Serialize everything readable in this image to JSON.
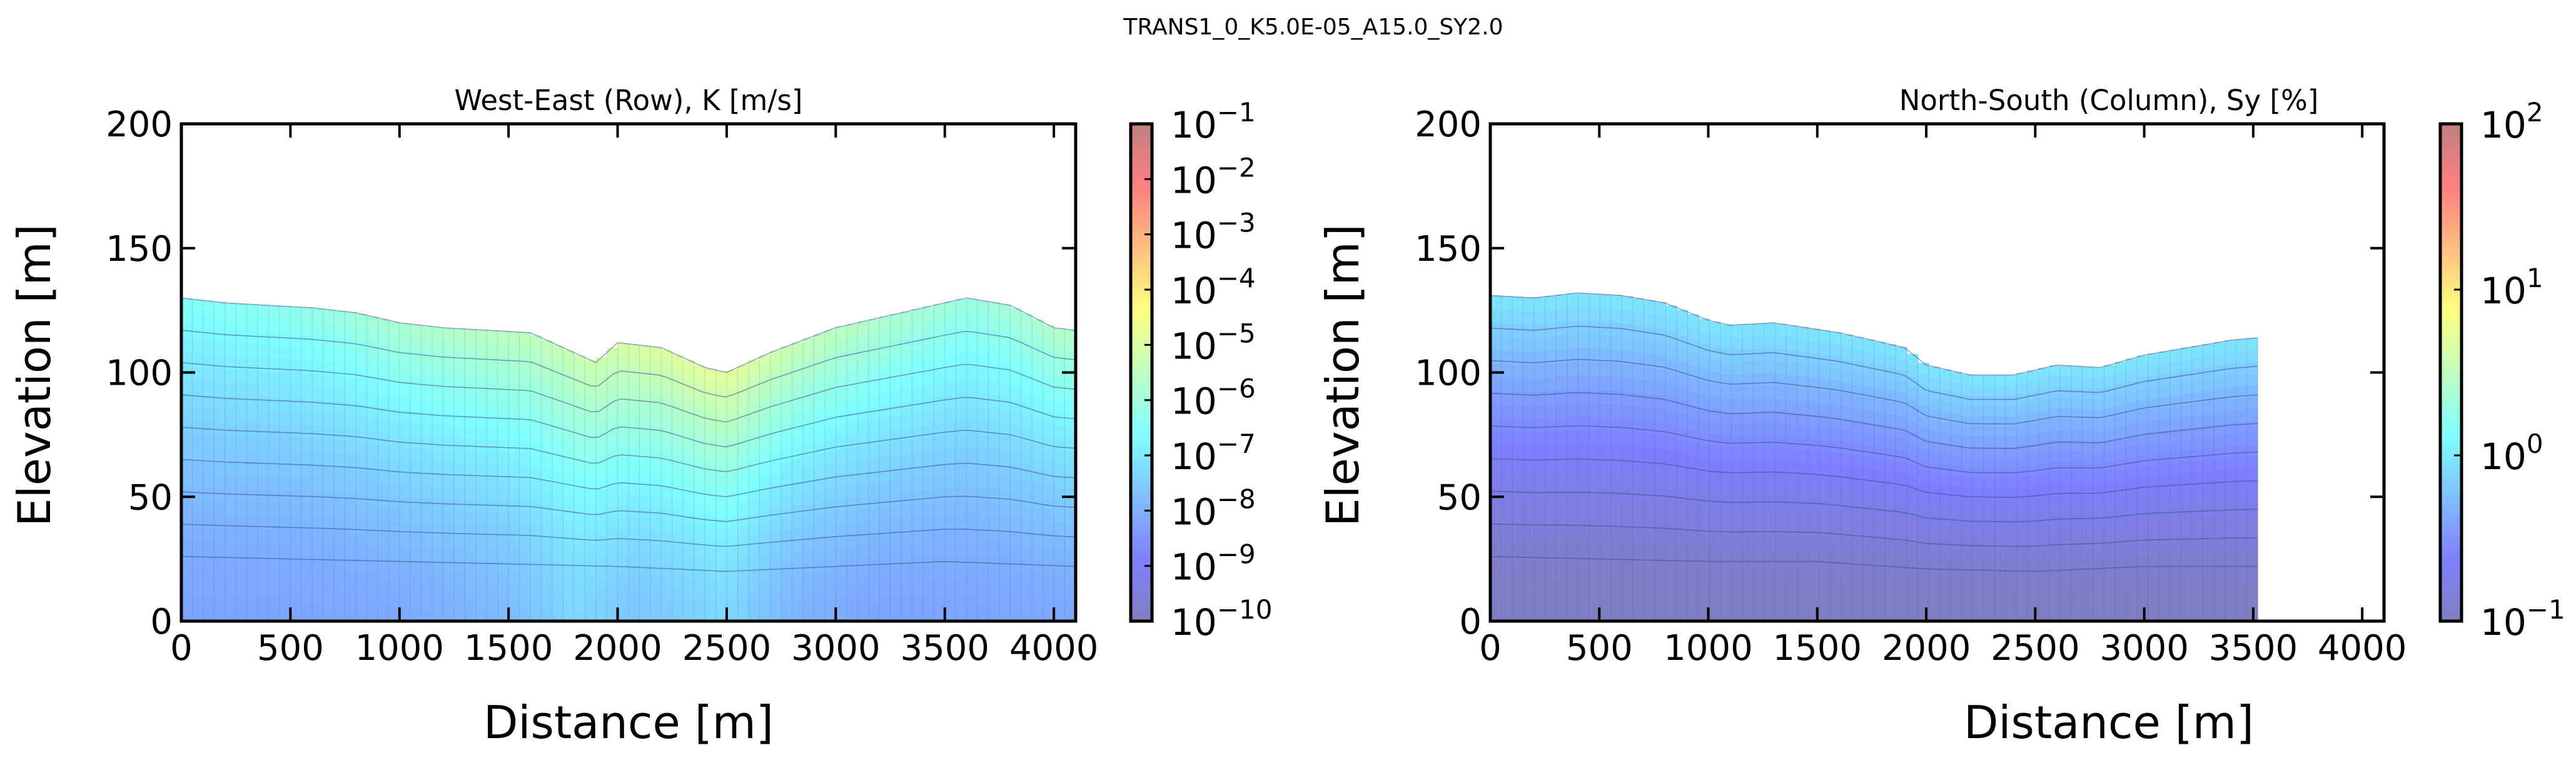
{
  "figure": {
    "suptitle": "TRANS1_0_K5.0E-05_A15.0_SY2.0"
  },
  "colors": {
    "jet": [
      "#00007f",
      "#0000ff",
      "#007fff",
      "#00ffff",
      "#7fff7f",
      "#ffff00",
      "#ff7f00",
      "#ff0000",
      "#7f0000"
    ],
    "layer_line": "#3a4a8a",
    "axis": "#000000"
  },
  "chart_data": [
    {
      "type": "heatmap",
      "title": "West-East (Row), K [m/s]",
      "xlabel": "Distance [m]",
      "ylabel": "Elevation [m]",
      "xlim": [
        0,
        4100
      ],
      "ylim": [
        0,
        200
      ],
      "xticks": [
        0,
        500,
        1000,
        1500,
        2000,
        2500,
        3000,
        3500,
        4000
      ],
      "yticks": [
        0,
        50,
        100,
        150,
        200
      ],
      "grid": false,
      "colorbar": {
        "scale": "log",
        "range": [
          1e-10,
          0.1
        ],
        "tick_bases": [
          "10",
          "10",
          "10",
          "10",
          "10",
          "10",
          "10",
          "10",
          "10",
          "10"
        ],
        "tick_exponents": [
          "-10",
          "-9",
          "-8",
          "-7",
          "-6",
          "-5",
          "-4",
          "-3",
          "-2",
          "-1"
        ]
      },
      "surface": {
        "x": [
          0,
          200,
          400,
          600,
          800,
          1000,
          1200,
          1400,
          1600,
          1800,
          1900,
          2000,
          2200,
          2400,
          2500,
          2700,
          3000,
          3300,
          3600,
          3800,
          4000,
          4100
        ],
        "top": [
          130,
          128,
          127,
          126,
          124,
          120,
          118,
          117,
          116,
          108,
          104,
          112,
          110,
          102,
          100,
          108,
          118,
          124,
          130,
          127,
          118,
          117
        ]
      },
      "bottom_layer_line": {
        "x": [
          0,
          500,
          1000,
          1500,
          2000,
          2500,
          3000,
          3500,
          4100
        ],
        "y": [
          26,
          25,
          24,
          23,
          22,
          20,
          22,
          24,
          22
        ]
      },
      "layers": 9,
      "values_profile": {
        "x": [
          0,
          500,
          1000,
          1500,
          1800,
          2100,
          2500,
          2800,
          3200,
          3600,
          4100
        ],
        "top_log10K": [
          -6.5,
          -6.3,
          -5.8,
          -5.5,
          -5.3,
          -5.0,
          -4.8,
          -5.3,
          -5.7,
          -6.1,
          -5.6
        ],
        "bottom_log10K": [
          -8.2,
          -8.2,
          -8.1,
          -7.8,
          -7.3,
          -7.6,
          -7.3,
          -7.9,
          -8.2,
          -8.2,
          -8.1
        ]
      }
    },
    {
      "type": "heatmap",
      "title": "North-South (Column), Sy [%]",
      "xlabel": "Distance [m]",
      "ylabel": "Elevation [m]",
      "xlim": [
        0,
        4100
      ],
      "ylim": [
        0,
        200
      ],
      "xticks": [
        0,
        500,
        1000,
        1500,
        2000,
        2500,
        3000,
        3500,
        4000
      ],
      "yticks": [
        0,
        50,
        100,
        150,
        200
      ],
      "grid": false,
      "colorbar": {
        "scale": "log",
        "range": [
          0.1,
          100.0
        ],
        "tick_bases": [
          "10",
          "10",
          "10",
          "10"
        ],
        "tick_exponents": [
          "-1",
          "0",
          "1",
          "2"
        ]
      },
      "surface": {
        "x": [
          0,
          200,
          400,
          600,
          800,
          1000,
          1100,
          1300,
          1600,
          1900,
          2000,
          2200,
          2400,
          2600,
          2800,
          3000,
          3200,
          3400,
          3520
        ],
        "top": [
          131,
          130,
          132,
          131,
          128,
          121,
          119,
          120,
          116,
          110,
          103,
          99,
          99,
          103,
          102,
          107,
          110,
          113,
          114
        ]
      },
      "bottom_layer_line": {
        "x": [
          0,
          500,
          1000,
          1500,
          2000,
          2500,
          3000,
          3520
        ],
        "y": [
          26,
          25,
          24,
          24,
          21,
          20,
          22,
          22
        ]
      },
      "layers": 9,
      "values_profile": {
        "x": [
          0,
          500,
          1000,
          1500,
          2000,
          2500,
          3000,
          3520
        ],
        "top_log10Sy": [
          0.0,
          0.0,
          0.0,
          0.0,
          0.0,
          0.0,
          0.0,
          0.0
        ],
        "bottom_log10Sy": [
          -0.98,
          -0.98,
          -0.98,
          -0.98,
          -0.98,
          -0.98,
          -0.98,
          -0.98
        ]
      }
    }
  ]
}
